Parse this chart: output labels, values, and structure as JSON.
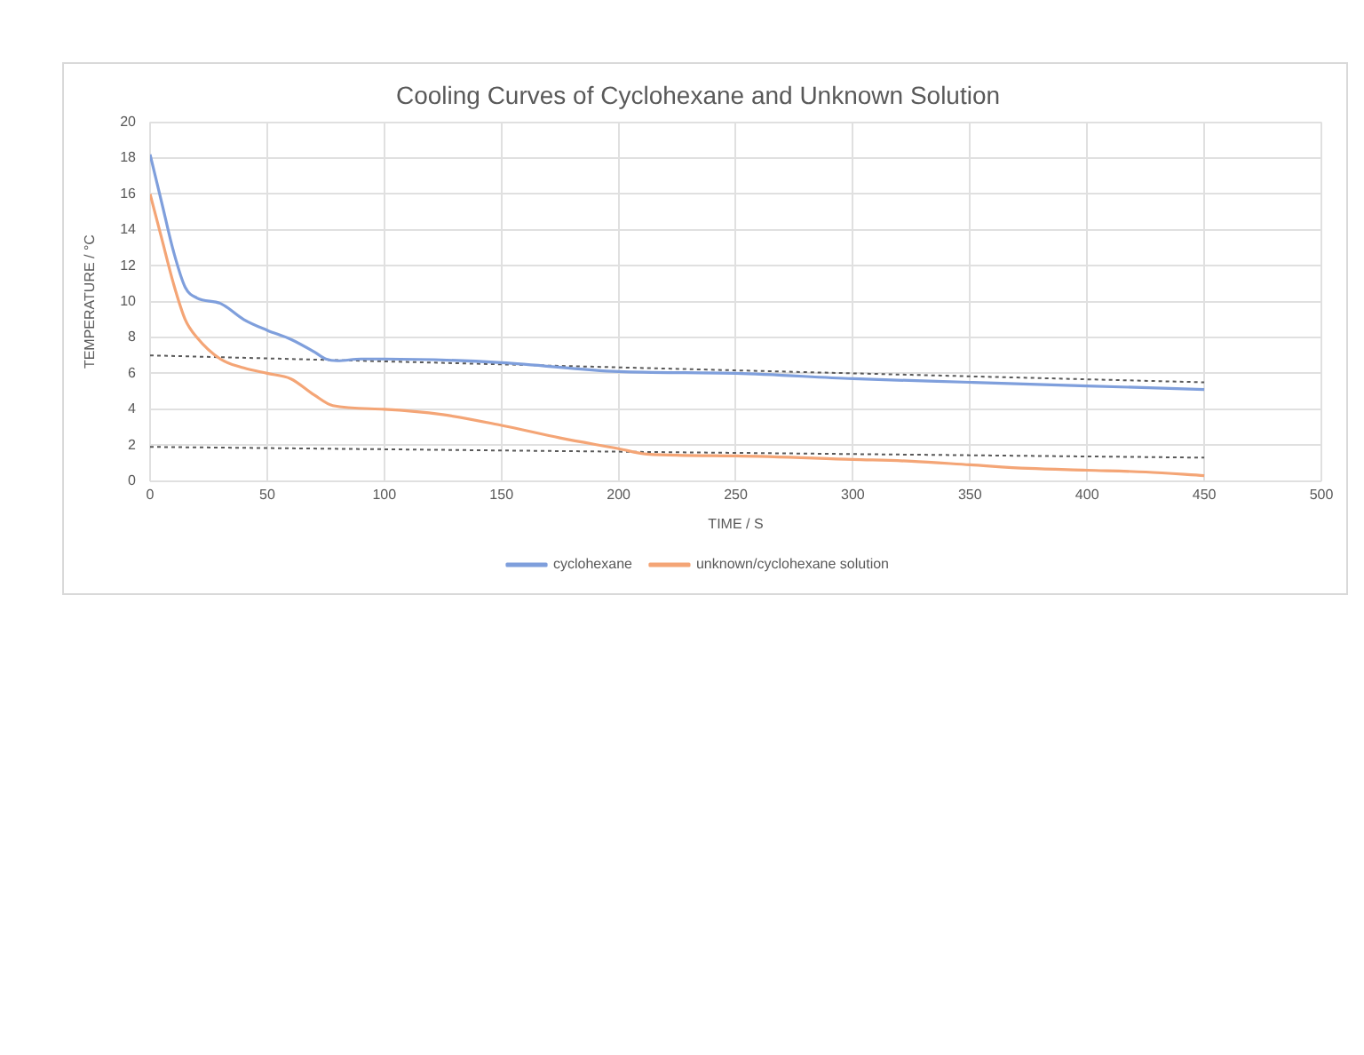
{
  "chart_data": {
    "type": "line",
    "title": "Cooling Curves of Cyclohexane and Unknown Solution",
    "xlabel": "TIME / S",
    "ylabel": "TEMPERATURE / °C",
    "xlim": [
      0,
      500
    ],
    "xticks": [
      0,
      50,
      100,
      150,
      200,
      250,
      300,
      350,
      400,
      450,
      500
    ],
    "ylim": [
      0,
      20
    ],
    "yticks": [
      0,
      2,
      4,
      6,
      8,
      10,
      12,
      14,
      16,
      18,
      20
    ],
    "grid": true,
    "legend": "bottom",
    "marker": "none",
    "series": [
      {
        "name": "cyclohexane",
        "color": "#7f9fdc",
        "x": [
          0,
          5,
          10,
          15,
          20,
          30,
          40,
          50,
          60,
          70,
          75,
          80,
          90,
          100,
          150,
          200,
          250,
          300,
          350,
          400,
          450
        ],
        "values": [
          18.2,
          15.5,
          12.8,
          10.8,
          10.2,
          9.9,
          9.0,
          8.4,
          7.9,
          7.2,
          6.8,
          6.7,
          6.8,
          6.8,
          6.6,
          6.1,
          6.0,
          5.7,
          5.5,
          5.3,
          5.1
        ]
      },
      {
        "name": "unknown/cyclohexane solution",
        "color": "#f4a576",
        "x": [
          0,
          5,
          10,
          15,
          20,
          30,
          40,
          50,
          60,
          70,
          78,
          100,
          125,
          150,
          175,
          200,
          212,
          250,
          300,
          325,
          350,
          375,
          400,
          425,
          450
        ],
        "values": [
          16.0,
          13.5,
          11.0,
          9.0,
          8.0,
          6.8,
          6.3,
          6.0,
          5.7,
          4.8,
          4.2,
          4.0,
          3.7,
          3.1,
          2.4,
          1.8,
          1.5,
          1.4,
          1.2,
          1.1,
          0.9,
          0.7,
          0.6,
          0.5,
          0.3
        ]
      },
      {
        "type": "line",
        "color": "#595959",
        "line_style": "dotted",
        "x": [
          0,
          450
        ],
        "values": [
          7.0,
          5.5
        ]
      },
      {
        "type": "line",
        "color": "#595959",
        "line_style": "dotted",
        "x": [
          0,
          450
        ],
        "values": [
          1.9,
          1.3
        ]
      }
    ]
  }
}
